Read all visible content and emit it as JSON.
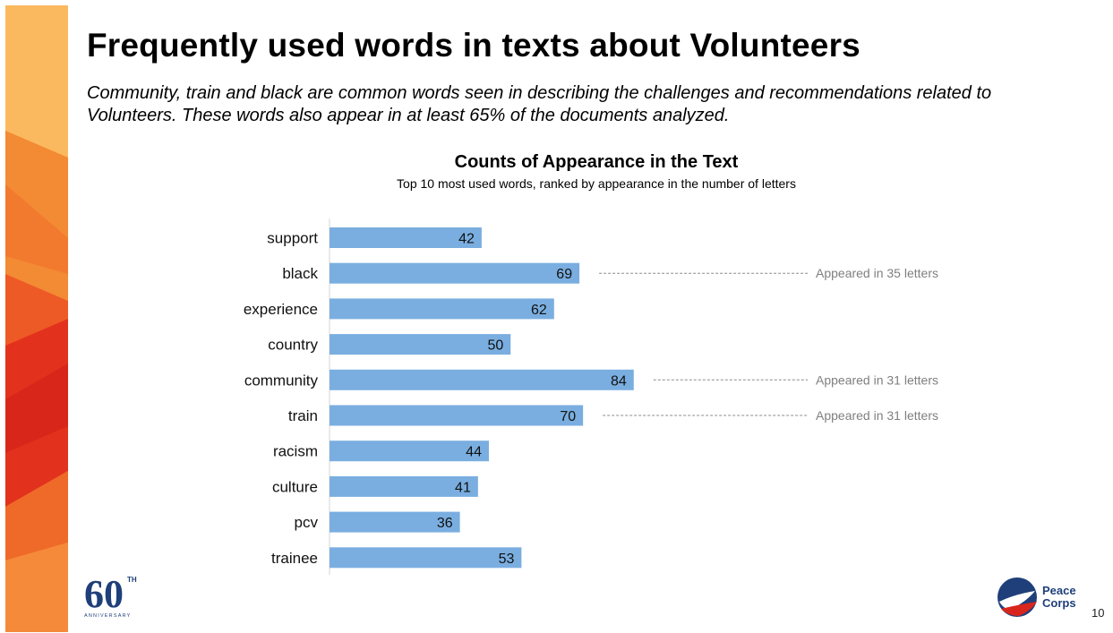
{
  "slide": {
    "title": "Frequently used words in texts about Volunteers",
    "subtitle": "Community, train and black are common words seen in describing the challenges and recommendations related to Volunteers. These words also appear in at least 65% of the documents analyzed.",
    "page_number": "10"
  },
  "logos": {
    "anniversary_number": "60",
    "anniversary_suffix": "TH",
    "anniversary_word": "ANNIVERSARY",
    "brand_line1": "Peace",
    "brand_line2": "Corps"
  },
  "colors": {
    "bar": "#7aaee0",
    "brand_blue": "#1f3f7a",
    "brand_red": "#d9261c",
    "band_orange": "#f07a2a"
  },
  "chart_data": {
    "type": "bar",
    "orientation": "horizontal",
    "title": "Counts of Appearance in the Text",
    "subtitle": "Top 10 most used words, ranked by appearance in the number of letters",
    "categories": [
      "support",
      "black",
      "experience",
      "country",
      "community",
      "train",
      "racism",
      "culture",
      "pcv",
      "trainee"
    ],
    "values": [
      42,
      69,
      62,
      50,
      84,
      70,
      44,
      41,
      36,
      53
    ],
    "xlim": [
      0,
      100
    ],
    "grid": false,
    "annotations": [
      {
        "category": "black",
        "text": "Appeared in 35 letters"
      },
      {
        "category": "community",
        "text": "Appeared in 31 letters"
      },
      {
        "category": "train",
        "text": "Appeared in 31 letters"
      }
    ]
  }
}
